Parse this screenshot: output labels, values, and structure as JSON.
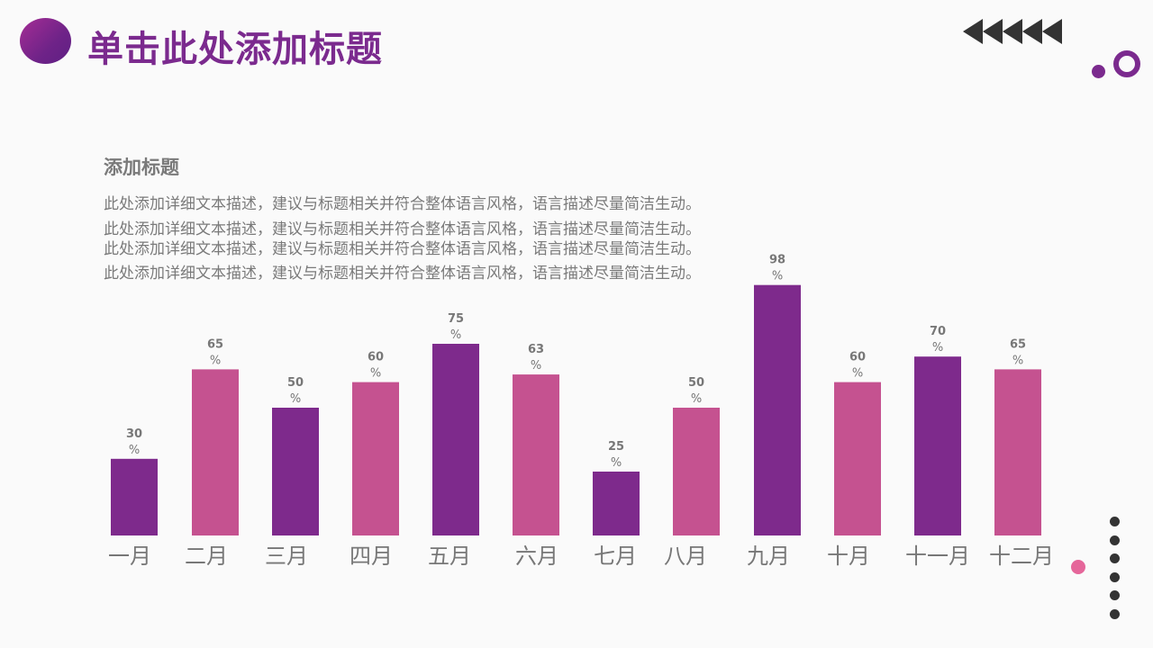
{
  "header": {
    "title": "单击此处添加标题"
  },
  "content": {
    "subtitle": "添加标题",
    "desc_lines": [
      "此处添加详细文本描述，建议与标题相关并符合整体语言风格，语言描述尽量简洁生动。",
      "此处添加详细文本描述，建议与标题相关并符合整体语言风格，语言描述尽量简洁生动。",
      "此处添加详细文本描述，建议与标题相关并符合整体语言风格，语言描述尽量简洁生动。",
      "此处添加详细文本描述，建议与标题相关并符合整体语言风格，语言描述尽量简洁生动。"
    ]
  },
  "colors": {
    "purple": "#7e2a8c",
    "pink": "#c55290",
    "text_gray": "#7a7a7a",
    "title_purple": "#7b2a8e"
  },
  "chart_data": {
    "type": "bar",
    "title": "",
    "categories": [
      "一月",
      "二月",
      "三月",
      "四月",
      "五月",
      "六月",
      "七月",
      "八月",
      "九月",
      "十月",
      "十一月",
      "十二月"
    ],
    "values": [
      30,
      65,
      50,
      60,
      75,
      63,
      25,
      50,
      98,
      60,
      70,
      65
    ],
    "label_suffix": "%",
    "ylim": [
      0,
      100
    ],
    "xlabel": "",
    "ylabel": "",
    "grid": false,
    "legend": "none"
  }
}
